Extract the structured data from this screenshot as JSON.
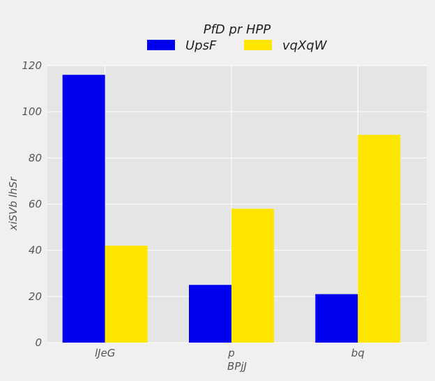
{
  "chart_data": {
    "type": "bar",
    "categories": [
      "lJeG",
      "p",
      "bq"
    ],
    "series": [
      {
        "name": "UpsF",
        "values": [
          116,
          25,
          21
        ],
        "color": "#0000ee"
      },
      {
        "name": "vqXqW",
        "values": [
          42,
          58,
          90
        ],
        "color": "#ffe600"
      }
    ],
    "xlabel": "BPjJ",
    "ylabel": "xiSVb lhSr",
    "ylim": [
      0,
      120
    ],
    "yticks": [
      0,
      20,
      40,
      60,
      80,
      100,
      120
    ],
    "legend": {
      "title": "PfD pr HPP",
      "placement": "top-center"
    },
    "grid": true,
    "plot_background": "#e5e5e5",
    "grid_color": "#ffffff"
  }
}
